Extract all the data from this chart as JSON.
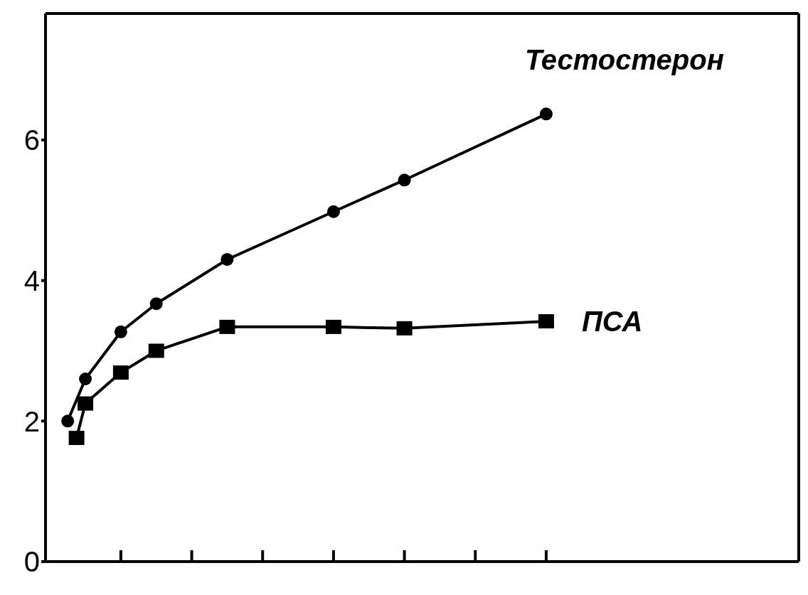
{
  "chart_data": {
    "type": "line",
    "categories": [
      null,
      null,
      null,
      null,
      null,
      null,
      null,
      null,
      null,
      null,
      null,
      null,
      null,
      null,
      null,
      null,
      null,
      null,
      null,
      null,
      null,
      null,
      null,
      null,
      null,
      null,
      null,
      null,
      null,
      null,
      null,
      null,
      null,
      null,
      null,
      null,
      null,
      null,
      null,
      null,
      null,
      null,
      null,
      null,
      null,
      null,
      null,
      null,
      null,
      null,
      null,
      null,
      null,
      null,
      null,
      null,
      null,
      null,
      null,
      null,
      null,
      null,
      null,
      null,
      null,
      null,
      null,
      null,
      null,
      null,
      null,
      null,
      null,
      null,
      null,
      null,
      null,
      null,
      null,
      null,
      null,
      null,
      null,
      null,
      null
    ],
    "ylim": [
      0,
      7.8
    ],
    "yticks": [
      0,
      2,
      4,
      6
    ],
    "tick_labels": "y",
    "legend": "right",
    "line_style": "solid",
    "series": [
      {
        "name": "Тестостерон",
        "color": "#000000",
        "marker": "circle",
        "values": [
          null,
          null,
          2.0,
          null,
          2.6,
          null,
          null,
          null,
          3.27,
          null,
          null,
          null,
          3.67,
          null,
          null,
          null,
          null,
          null,
          null,
          null,
          4.3,
          null,
          null,
          null,
          null,
          null,
          null,
          null,
          null,
          null,
          null,
          null,
          4.98,
          null,
          null,
          null,
          null,
          null,
          null,
          null,
          5.43,
          null,
          null,
          null,
          null,
          null,
          null,
          null,
          null,
          null,
          null,
          null,
          null,
          null,
          null,
          null,
          6.37,
          null,
          null,
          null,
          null,
          null,
          null,
          null,
          null,
          null,
          null,
          null,
          null,
          null,
          null,
          null,
          null,
          null,
          null,
          null,
          null,
          null,
          null,
          null,
          null,
          null,
          null,
          null,
          null
        ]
      },
      {
        "name": "ПСА",
        "color": "#000000",
        "marker": "square",
        "values": [
          null,
          null,
          null,
          1.76,
          2.25,
          null,
          null,
          null,
          2.69,
          null,
          null,
          null,
          3.0,
          null,
          null,
          null,
          null,
          null,
          null,
          null,
          3.34,
          null,
          null,
          null,
          null,
          null,
          null,
          null,
          null,
          null,
          null,
          null,
          3.34,
          null,
          null,
          null,
          null,
          null,
          null,
          null,
          3.32,
          null,
          null,
          null,
          null,
          null,
          null,
          null,
          null,
          null,
          null,
          null,
          null,
          null,
          null,
          null,
          3.42,
          null,
          null,
          null,
          null,
          null,
          null,
          null,
          null,
          null,
          null,
          null,
          null,
          null,
          null,
          null,
          null,
          null,
          null,
          null,
          null,
          null,
          null,
          null,
          null,
          null,
          null,
          null,
          null
        ]
      }
    ]
  }
}
